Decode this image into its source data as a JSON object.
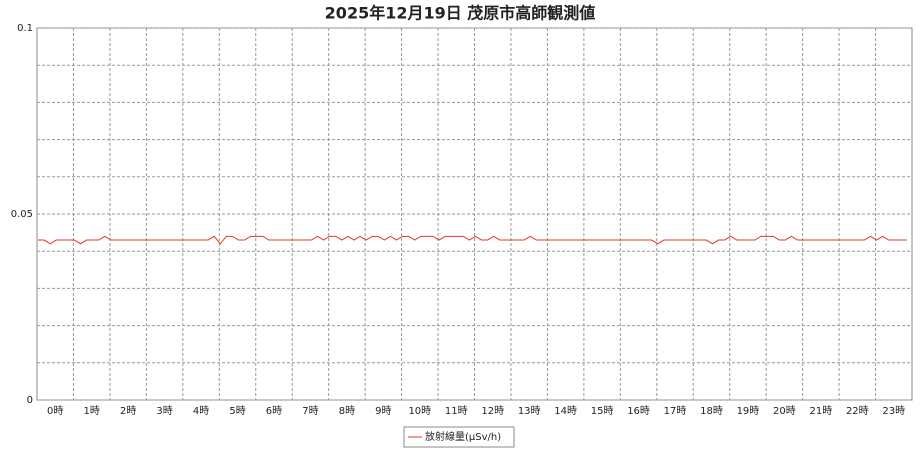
{
  "chart_data": {
    "type": "line",
    "title": "2025年12月19日 茂原市高師観測値",
    "hour_labels": [
      "0時",
      "1時",
      "2時",
      "3時",
      "4時",
      "5時",
      "6時",
      "7時",
      "8時",
      "9時",
      "10時",
      "11時",
      "12時",
      "13時",
      "14時",
      "15時",
      "16時",
      "17時",
      "18時",
      "19時",
      "20時",
      "21時",
      "22時",
      "23時"
    ],
    "points_per_hour": 6,
    "ylim": [
      0,
      0.1
    ],
    "yticks": [
      0,
      0.05,
      0.1
    ],
    "y_minor_ticks": [
      0.01,
      0.02,
      0.03,
      0.04,
      0.06,
      0.07,
      0.08,
      0.09
    ],
    "grid": true,
    "legend": "bottom",
    "series": [
      {
        "name": "放射線量(μSv/h)",
        "color": "#e8351f",
        "values": [
          0.043,
          0.043,
          0.042,
          0.043,
          0.043,
          0.043,
          0.043,
          0.042,
          0.043,
          0.043,
          0.043,
          0.044,
          0.043,
          0.043,
          0.043,
          0.043,
          0.043,
          0.043,
          0.043,
          0.043,
          0.043,
          0.043,
          0.043,
          0.043,
          0.043,
          0.043,
          0.043,
          0.043,
          0.043,
          0.044,
          0.042,
          0.044,
          0.044,
          0.043,
          0.043,
          0.044,
          0.044,
          0.044,
          0.043,
          0.043,
          0.043,
          0.043,
          0.043,
          0.043,
          0.043,
          0.043,
          0.044,
          0.043,
          0.044,
          0.044,
          0.043,
          0.044,
          0.043,
          0.044,
          0.043,
          0.044,
          0.044,
          0.043,
          0.044,
          0.043,
          0.044,
          0.044,
          0.043,
          0.044,
          0.044,
          0.044,
          0.043,
          0.044,
          0.044,
          0.044,
          0.044,
          0.043,
          0.044,
          0.043,
          0.043,
          0.044,
          0.043,
          0.043,
          0.043,
          0.043,
          0.043,
          0.044,
          0.043,
          0.043,
          0.043,
          0.043,
          0.043,
          0.043,
          0.043,
          0.043,
          0.043,
          0.043,
          0.043,
          0.043,
          0.043,
          0.043,
          0.043,
          0.043,
          0.043,
          0.043,
          0.043,
          0.043,
          0.042,
          0.043,
          0.043,
          0.043,
          0.043,
          0.043,
          0.043,
          0.043,
          0.043,
          0.042,
          0.043,
          0.043,
          0.044,
          0.043,
          0.043,
          0.043,
          0.043,
          0.044,
          0.044,
          0.044,
          0.043,
          0.043,
          0.044,
          0.043,
          0.043,
          0.043,
          0.043,
          0.043,
          0.043,
          0.043,
          0.043,
          0.043,
          0.043,
          0.043,
          0.043,
          0.044,
          0.043,
          0.044,
          0.043,
          0.043,
          0.043,
          0.043
        ]
      }
    ]
  }
}
